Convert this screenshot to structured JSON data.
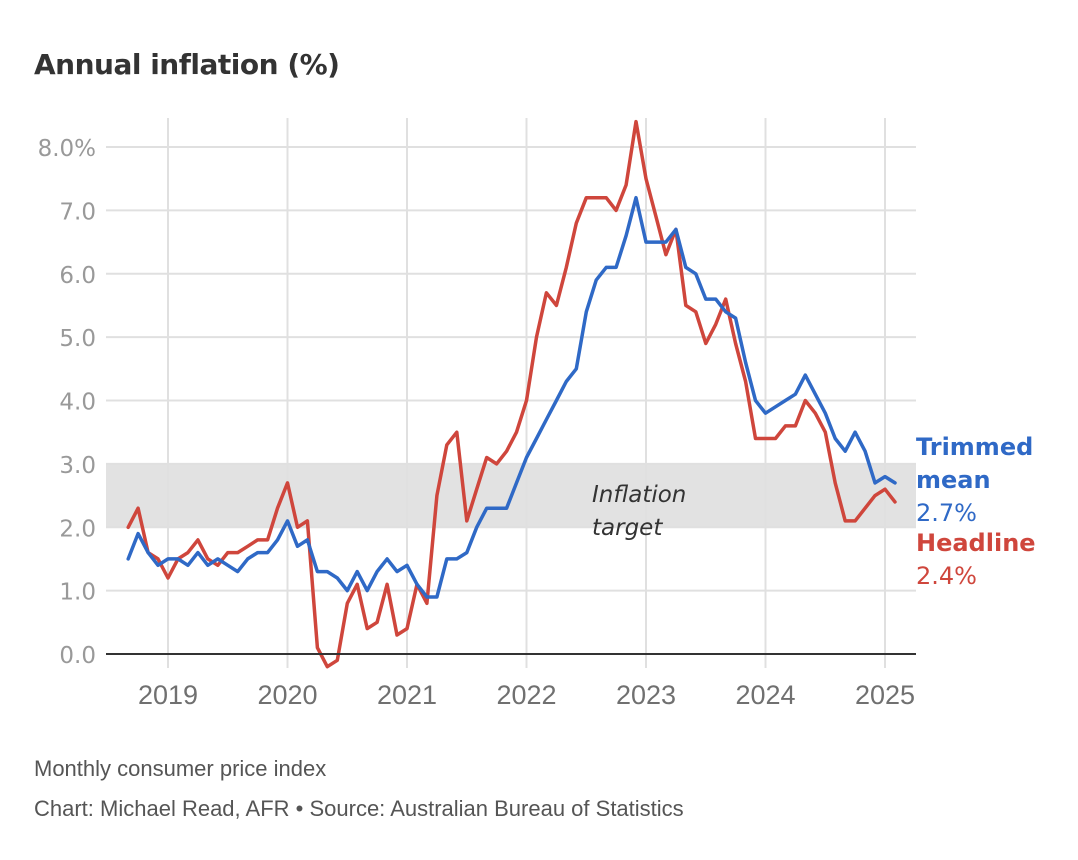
{
  "header": {
    "title": "Annual inflation (%)"
  },
  "footer": {
    "subtitle": "Monthly consumer price index",
    "credit": "Chart: Michael Read, AFR • Source: Australian Bureau of Statistics"
  },
  "colors": {
    "headline": "#cf463c",
    "trimmed_mean": "#2f69c6",
    "band": "#e2e2e2",
    "grid": "#e0e0e0",
    "axis": "#333333"
  },
  "chart_data": {
    "type": "line",
    "title": "Annual inflation (%)",
    "xlabel": "",
    "ylabel": "",
    "x_start": "2018-09",
    "x_end": "2025-01",
    "x_frequency": "monthly",
    "ylim": [
      0,
      8
    ],
    "yticks": [
      0,
      1,
      2,
      3,
      4,
      5,
      6,
      7,
      8
    ],
    "ytick_labels": [
      "0.0",
      "1.0",
      "2.0",
      "3.0",
      "4.0",
      "5.0",
      "6.0",
      "7.0",
      "8.0%"
    ],
    "xticks": [
      "2019",
      "2020",
      "2021",
      "2022",
      "2023",
      "2024",
      "2025"
    ],
    "grid": true,
    "band": {
      "from": 2.0,
      "to": 3.0,
      "label_line1": "Inflation",
      "label_line2": "target"
    },
    "series": [
      {
        "name": "Trimmed mean",
        "end_label": "Trimmed",
        "end_label2": "mean",
        "end_value_label": "2.7%",
        "values": [
          1.5,
          1.9,
          1.6,
          1.4,
          1.5,
          1.5,
          1.4,
          1.6,
          1.4,
          1.5,
          1.4,
          1.3,
          1.5,
          1.6,
          1.6,
          1.8,
          2.1,
          1.7,
          1.8,
          1.3,
          1.3,
          1.2,
          1.0,
          1.3,
          1.0,
          1.3,
          1.5,
          1.3,
          1.4,
          1.1,
          0.9,
          0.9,
          1.5,
          1.5,
          1.6,
          2.0,
          2.3,
          2.3,
          2.3,
          2.7,
          3.1,
          3.4,
          3.7,
          4.0,
          4.3,
          4.5,
          5.4,
          5.9,
          6.1,
          6.1,
          6.6,
          7.2,
          6.5,
          6.5,
          6.5,
          6.7,
          6.1,
          6.0,
          5.6,
          5.6,
          5.4,
          5.3,
          4.6,
          4.0,
          3.8,
          3.9,
          4.0,
          4.1,
          4.4,
          4.1,
          3.8,
          3.4,
          3.2,
          3.5,
          3.2,
          2.7,
          2.8,
          2.7
        ]
      },
      {
        "name": "Headline",
        "end_label": "Headline",
        "end_value_label": "2.4%",
        "values": [
          2.0,
          2.3,
          1.6,
          1.5,
          1.2,
          1.5,
          1.6,
          1.8,
          1.5,
          1.4,
          1.6,
          1.6,
          1.7,
          1.8,
          1.8,
          2.3,
          2.7,
          2.0,
          2.1,
          0.1,
          -0.2,
          -0.1,
          0.8,
          1.1,
          0.4,
          0.5,
          1.1,
          0.3,
          0.4,
          1.1,
          0.8,
          2.5,
          3.3,
          3.5,
          2.1,
          2.6,
          3.1,
          3.0,
          3.2,
          3.5,
          4.0,
          5.0,
          5.7,
          5.5,
          6.1,
          6.8,
          7.2,
          7.2,
          7.2,
          7.0,
          7.4,
          8.4,
          7.5,
          6.9,
          6.3,
          6.7,
          5.5,
          5.4,
          4.9,
          5.2,
          5.6,
          4.9,
          4.3,
          3.4,
          3.4,
          3.4,
          3.6,
          3.6,
          4.0,
          3.8,
          3.5,
          2.7,
          2.1,
          2.1,
          2.3,
          2.5,
          2.6,
          2.4
        ]
      }
    ]
  }
}
